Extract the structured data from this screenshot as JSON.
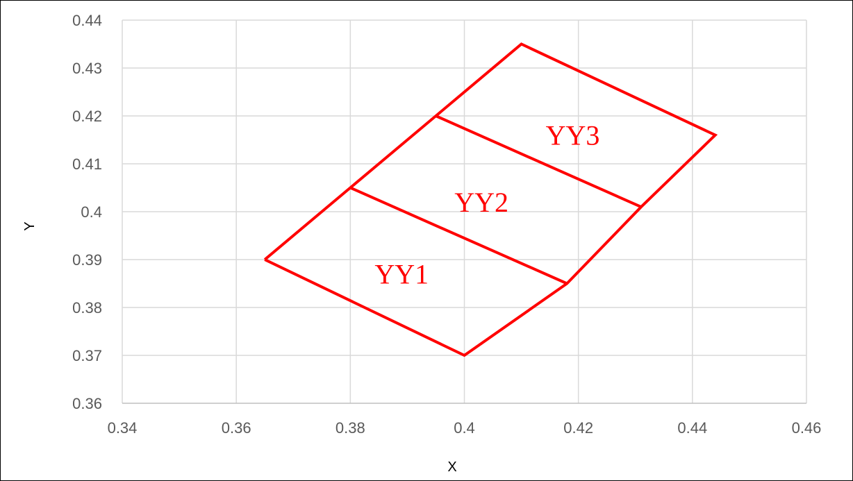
{
  "chart_data": {
    "type": "scatter",
    "xlabel": "X",
    "ylabel": "Y",
    "xlim": [
      0.34,
      0.46
    ],
    "ylim": [
      0.36,
      0.44
    ],
    "x_ticks": [
      "0.34",
      "0.36",
      "0.38",
      "0.4",
      "0.42",
      "0.44",
      "0.46"
    ],
    "y_ticks": [
      "0.36",
      "0.37",
      "0.38",
      "0.39",
      "0.4",
      "0.41",
      "0.42",
      "0.43",
      "0.44"
    ],
    "grid": true,
    "legend": "none",
    "line_color": "#ff0000",
    "outline": {
      "x": [
        0.365,
        0.4,
        0.418,
        0.431,
        0.444,
        0.41,
        0.395,
        0.38,
        0.365
      ],
      "y": [
        0.39,
        0.37,
        0.385,
        0.401,
        0.416,
        0.435,
        0.42,
        0.405,
        0.39
      ]
    },
    "dividers": [
      {
        "x": [
          0.38,
          0.418
        ],
        "y": [
          0.405,
          0.385
        ]
      },
      {
        "x": [
          0.395,
          0.431
        ],
        "y": [
          0.42,
          0.401
        ]
      }
    ],
    "annotations": [
      {
        "text": "YY1",
        "x": 0.389,
        "y": 0.387
      },
      {
        "text": "YY2",
        "x": 0.403,
        "y": 0.402
      },
      {
        "text": "YY3",
        "x": 0.419,
        "y": 0.416
      }
    ]
  }
}
